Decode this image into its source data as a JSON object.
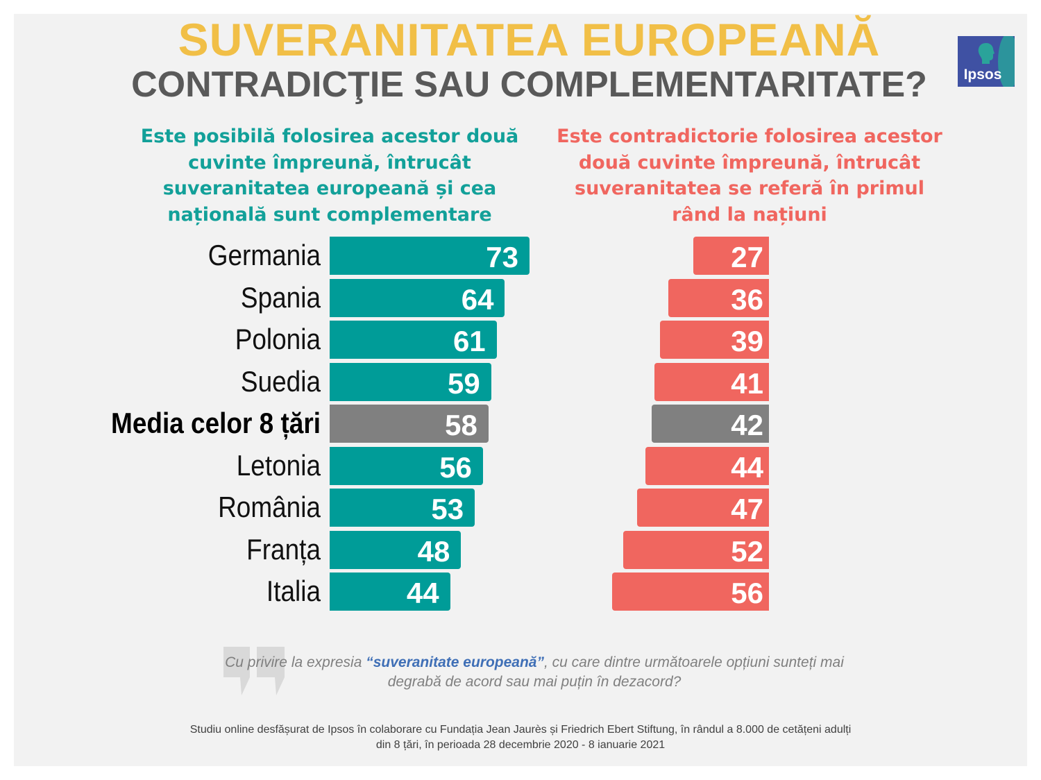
{
  "header": {
    "title": "SUVERANITATEA EUROPEANĂ",
    "subtitle": "CONTRADICŢIE SAU COMPLEMENTARITATE?",
    "logo_text": "Ipsos"
  },
  "columns": {
    "left": "Este posibilă folosirea acestor două cuvinte împreună, întrucât suveranitatea europeană și cea națională sunt complementare",
    "right": "Este contradictorie folosirea acestor două cuvinte împreună, întrucât suveranitatea se referă în primul rând la națiuni"
  },
  "colors": {
    "left": "#009c98",
    "right": "#f0665f",
    "average": "#808080",
    "title": "#f1bf47"
  },
  "chart_data": {
    "type": "bar",
    "title": "SUVERANITATEA EUROPEANĂ",
    "categories": [
      "Germania",
      "Spania",
      "Polonia",
      "Suedia",
      "Media celor 8 țări",
      "Letonia",
      "România",
      "Franța",
      "Italia"
    ],
    "highlight_category": "Media celor 8 țări",
    "series": [
      {
        "name": "Este posibilă folosirea acestor două cuvinte împreună, întrucât suveranitatea europeană și cea națională sunt complementare",
        "values": [
          73,
          64,
          61,
          59,
          58,
          56,
          53,
          48,
          44
        ]
      },
      {
        "name": "Este contradictorie folosirea acestor două cuvinte împreună, întrucât suveranitatea se referă în primul rând la națiuni",
        "values": [
          27,
          36,
          39,
          41,
          42,
          44,
          47,
          52,
          56
        ]
      }
    ],
    "xlim": [
      0,
      100
    ]
  },
  "question": {
    "pre": "Cu privire la expresia ",
    "highlight": "“suveranitate europeană”",
    "post": ", cu care dintre următoarele opțiuni sunteți mai degrabă de acord sau mai puțin în dezacord?"
  },
  "footer": {
    "line1": "Studiu online desfășurat de Ipsos în colaborare cu Fundația Jean Jaurès și Friedrich Ebert Stiftung, în rândul a 8.000 de cetățeni adulți",
    "line2": "din 8 țări, în perioada 28 decembrie 2020 - 8 ianuarie 2021"
  }
}
